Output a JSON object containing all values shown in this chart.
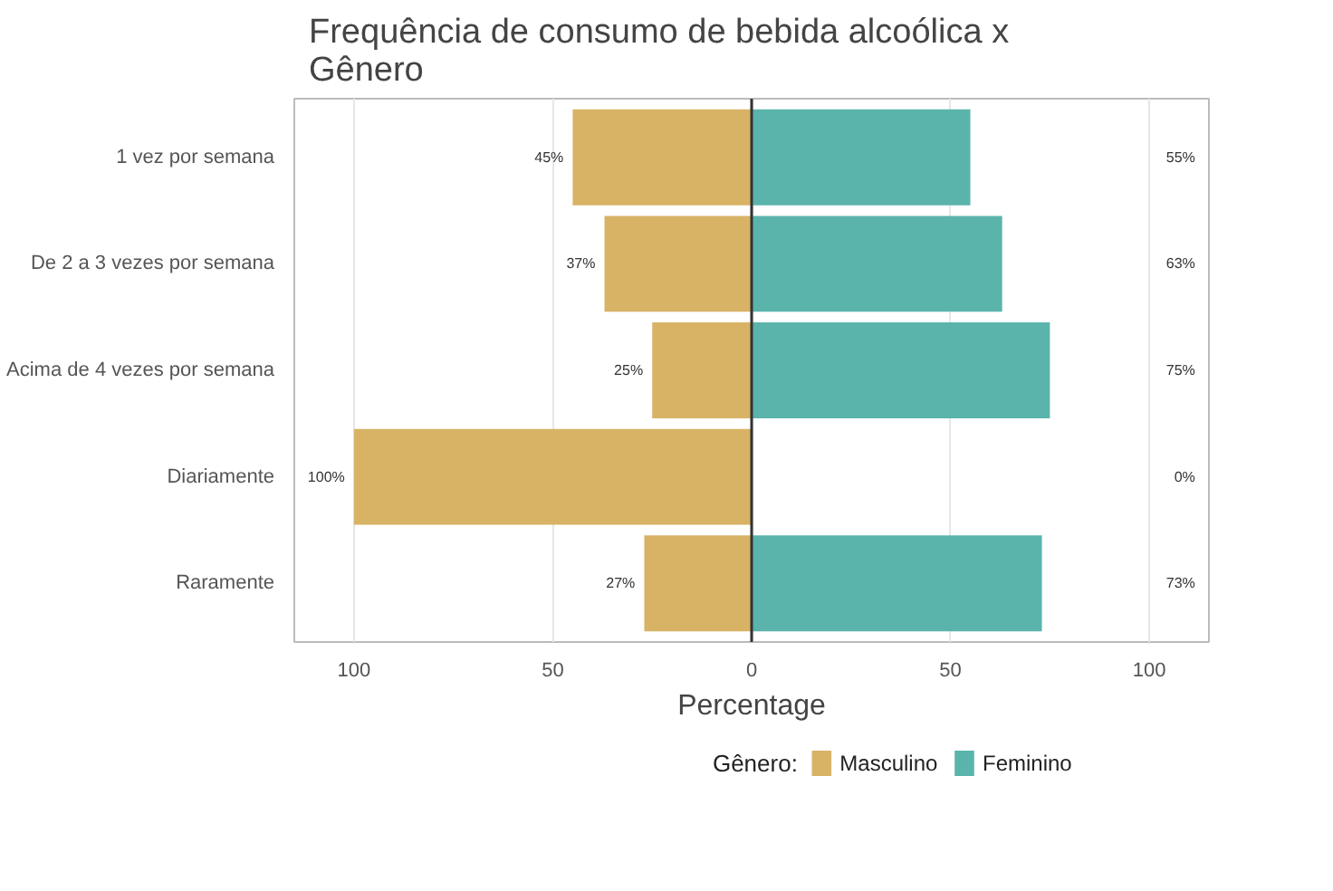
{
  "chart_data": {
    "type": "bar",
    "orientation": "horizontal",
    "title": "Frequência de consumo de bebida alcoólica x\n Gênero",
    "xlabel": "Percentage",
    "legend_title": "Gênero:",
    "categories": [
      "1 vez por semana",
      "De 2 a 3 vezes por semana",
      "Acima de 4 vezes por semana",
      "Diariamente",
      "Raramente"
    ],
    "series": [
      {
        "name": "Masculino",
        "color": "#d8b365",
        "values": [
          45,
          37,
          25,
          100,
          27
        ],
        "base": [
          -45,
          -37,
          -25,
          -100,
          -27
        ],
        "value_labels": [
          "45%",
          "37%",
          "25%",
          "100%",
          "27%"
        ]
      },
      {
        "name": "Feminino",
        "color": "#5ab4ac",
        "values": [
          55,
          63,
          75,
          0,
          73
        ],
        "value_labels": [
          "55%",
          "63%",
          "75%",
          "0%",
          "73%"
        ]
      }
    ],
    "xlim": [
      -115,
      115
    ],
    "xticks": [
      {
        "value": -100,
        "label": "100"
      },
      {
        "value": -50,
        "label": "50"
      },
      0,
      50,
      100
    ],
    "ref_lines": [
      {
        "axis": "x",
        "value": 0,
        "color": "#333333"
      }
    ],
    "grid": "x",
    "legend": "bottom"
  }
}
